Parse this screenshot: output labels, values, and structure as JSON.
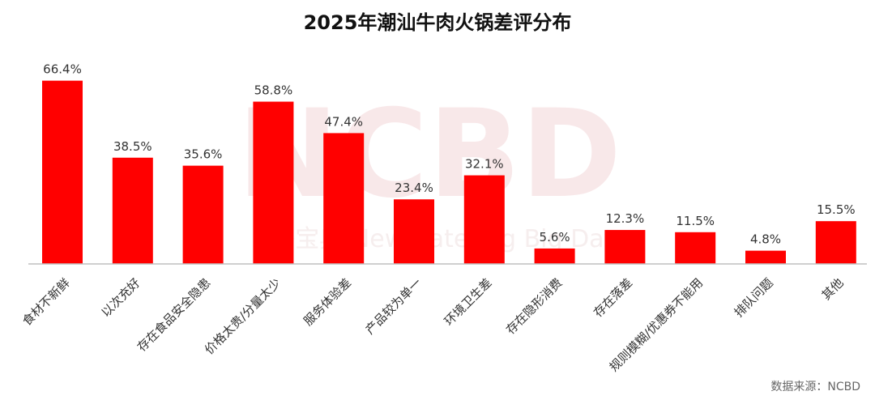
{
  "title": "2025年潮汕牛肉火锅差评分布",
  "source": "数据来源：NCBD",
  "watermark": {
    "main": "NCBD",
    "sub": "餐宝典 New Catering Big Data"
  },
  "colors": {
    "bar": "#ff0000",
    "axis": "#bfbfbf",
    "watermark": "#f4d6d8"
  },
  "chart_data": {
    "type": "bar",
    "title": "2025年潮汕牛肉火锅差评分布",
    "categories": [
      "食材不新鲜",
      "以次充好",
      "存在食品安全隐患",
      "价格太贵/分量太少",
      "服务体验差",
      "产品较为单一",
      "环境卫生差",
      "存在隐形消费",
      "存在落差",
      "规则模糊/优惠券不能用",
      "排队问题",
      "其他"
    ],
    "values": [
      66.4,
      38.5,
      35.6,
      58.8,
      47.4,
      23.4,
      32.1,
      5.6,
      12.3,
      11.5,
      4.8,
      15.5
    ],
    "value_labels": [
      "66.4%",
      "38.5%",
      "35.6%",
      "58.8%",
      "47.4%",
      "23.4%",
      "32.1%",
      "5.6%",
      "12.3%",
      "11.5%",
      "4.8%",
      "15.5%"
    ],
    "unit": "%",
    "xlabel": "",
    "ylabel": "",
    "ylim": [
      0,
      70
    ],
    "grid": false,
    "legend": "none"
  }
}
